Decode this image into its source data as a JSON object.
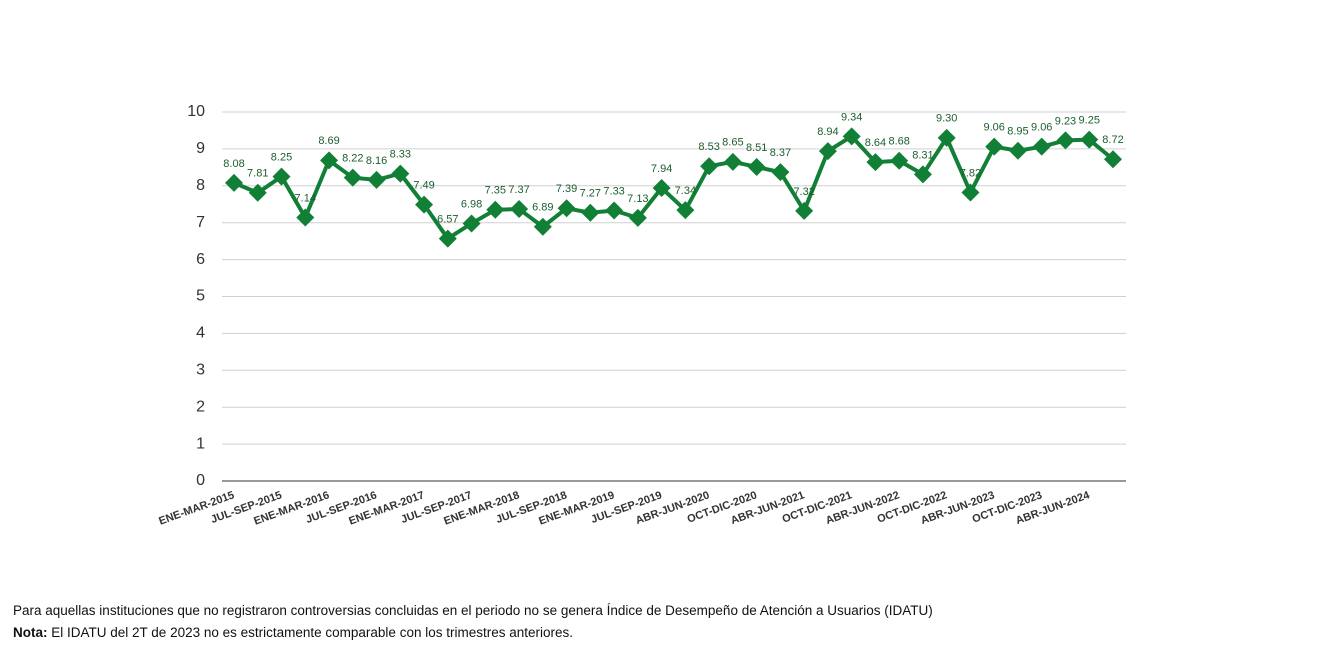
{
  "chart_data": {
    "type": "line",
    "categories": [
      "ENE-MAR-2015",
      null,
      "JUL-SEP-2015",
      null,
      "ENE-MAR-2016",
      null,
      "JUL-SEP-2016",
      null,
      "ENE-MAR-2017",
      null,
      "JUL-SEP-2017",
      null,
      "ENE-MAR-2018",
      null,
      "JUL-SEP-2018",
      null,
      "ENE-MAR-2019",
      null,
      "JUL-SEP-2019",
      null,
      "ABR-JUN-2020",
      null,
      "OCT-DIC-2020",
      null,
      "ABR-JUN-2021",
      null,
      "OCT-DIC-2021",
      null,
      "ABR-JUN-2022",
      null,
      "OCT-DIC-2022",
      null,
      "ABR-JUN-2023",
      null,
      "OCT-DIC-2023",
      null,
      "ABR-JUN-2024",
      null
    ],
    "series": [
      {
        "color": "#118036",
        "values": [
          8.08,
          7.81,
          8.25,
          7.14,
          8.69,
          8.22,
          8.16,
          8.33,
          7.49,
          6.57,
          6.98,
          7.35,
          7.37,
          6.89,
          7.39,
          7.27,
          7.33,
          7.13,
          7.94,
          7.34,
          8.53,
          8.65,
          8.51,
          8.37,
          7.32,
          8.94,
          9.34,
          8.64,
          8.68,
          8.31,
          9.3,
          7.82,
          9.06,
          8.95,
          9.06,
          9.23,
          9.25,
          8.72
        ],
        "value_labels": [
          "8.08",
          "7.81",
          "8.25",
          "7.14",
          "8.69",
          "8.22",
          "8.16",
          "8.33",
          "7.49",
          "6.57",
          "6.98",
          "7.35",
          "7.37",
          "6.89",
          "7.39",
          "7.27",
          "7.33",
          "7.13",
          "7.94",
          "7.34",
          "8.53",
          "8.65",
          "8.51",
          "8.37",
          "7.32",
          "8.94",
          "9.34",
          "8.64",
          "8.68",
          "8.31",
          "9.30",
          "7.82",
          "9.06",
          "8.95",
          "9.06",
          "9.23",
          "9.25",
          "8.72"
        ]
      }
    ],
    "ylim": [
      0,
      10
    ],
    "yticks": [
      0,
      1,
      2,
      3,
      4,
      5,
      6,
      7,
      8,
      9,
      10
    ],
    "grid": true
  },
  "notes": {
    "line1": "Para aquellas instituciones que no registraron controversias concluidas en el periodo no se genera Índice de Desempeño de Atención a Usuarios (IDATU)",
    "nota_label": "Nota:",
    "nota_text": "El IDATU del 2T de 2023 no es estrictamente comparable con los trimestres anteriores."
  }
}
